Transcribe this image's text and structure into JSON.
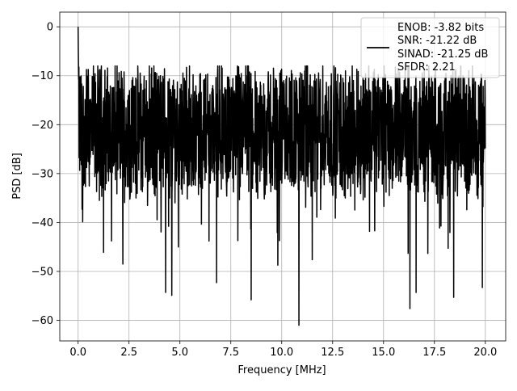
{
  "chart_data": {
    "type": "line",
    "title": "",
    "xlabel": "Frequency [MHz]",
    "ylabel": "PSD [dB]",
    "xlim": [
      -0.9,
      21.0
    ],
    "ylim": [
      -64.2,
      3.0
    ],
    "x_ticks": [
      0.0,
      2.5,
      5.0,
      7.5,
      10.0,
      12.5,
      15.0,
      17.5,
      20.0
    ],
    "x_tick_labels": [
      "0.0",
      "2.5",
      "5.0",
      "7.5",
      "10.0",
      "12.5",
      "15.0",
      "17.5",
      "20.0"
    ],
    "y_ticks": [
      0,
      -10,
      -20,
      -30,
      -40,
      -50,
      -60
    ],
    "y_tick_labels": [
      "0",
      "−10",
      "−20",
      "−30",
      "−40",
      "−50",
      "−60"
    ],
    "grid": true,
    "legend_placement": "upper right",
    "legend_text": [
      "ENOB: -3.82 bits",
      "SNR: -21.22 dB",
      "SINAD: -21.25 dB",
      "SFDR: 2.21"
    ],
    "line_color": "#000000",
    "series": [
      {
        "x_range": [
          0.0,
          20.0
        ],
        "num_points": 2048,
        "peak": {
          "x": 0.0,
          "y": 0.0
        },
        "noise_floor_mean": -21.2,
        "typical_range": [
          -35,
          -10
        ],
        "max_excursion_above_floor": -8.0,
        "notable_minima": [
          {
            "x": 0.2,
            "y": -37.3
          },
          {
            "x": 1.25,
            "y": -46.1
          },
          {
            "x": 2.2,
            "y": -48.5
          },
          {
            "x": 4.3,
            "y": -54.3
          },
          {
            "x": 4.6,
            "y": -54.9
          },
          {
            "x": 6.8,
            "y": -52.3
          },
          {
            "x": 8.5,
            "y": -55.8
          },
          {
            "x": 10.85,
            "y": -61.0
          },
          {
            "x": 11.5,
            "y": -47.6
          },
          {
            "x": 16.3,
            "y": -57.6
          },
          {
            "x": 16.6,
            "y": -54.3
          },
          {
            "x": 18.45,
            "y": -55.3
          },
          {
            "x": 19.85,
            "y": -53.3
          }
        ]
      }
    ]
  }
}
